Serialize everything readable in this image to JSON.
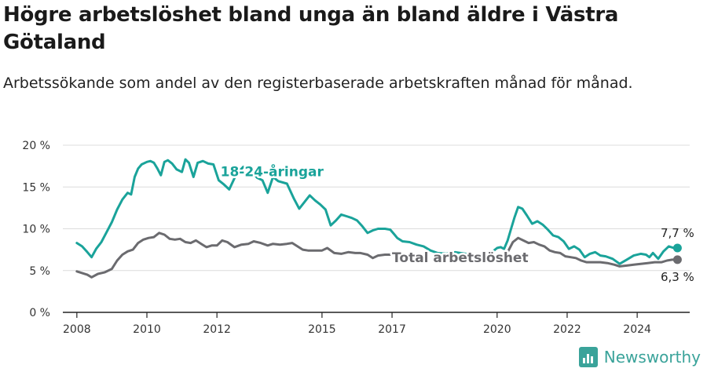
{
  "header": {
    "title": "Högre arbetslöshet bland unga än bland äldre i Västra Götaland",
    "subtitle": "Arbetssökande som andel av den registerbaserade arbetskraften månad för månad."
  },
  "brand": {
    "name": "Newsworthy",
    "logo_icon": "bar-chart-logo-icon"
  },
  "colors": {
    "youth": "#1aa39a",
    "total": "#6b6b6f",
    "grid": "#dcdcdc",
    "axis": "#222222"
  },
  "chart_data": {
    "type": "line",
    "x_unit": "year",
    "xlim": [
      2007.6,
      2025.5
    ],
    "ylim": [
      0,
      20
    ],
    "grid": "horizontal",
    "y_ticks": [
      {
        "value": 0,
        "label": "0 %"
      },
      {
        "value": 5,
        "label": "5 %"
      },
      {
        "value": 10,
        "label": "10 %"
      },
      {
        "value": 15,
        "label": "15 %"
      },
      {
        "value": 20,
        "label": "20 %"
      }
    ],
    "x_ticks": [
      {
        "value": 2008,
        "label": "2008"
      },
      {
        "value": 2010,
        "label": "2010"
      },
      {
        "value": 2012,
        "label": "2012"
      },
      {
        "value": 2015,
        "label": "2015"
      },
      {
        "value": 2017,
        "label": "2017"
      },
      {
        "value": 2020,
        "label": "2020"
      },
      {
        "value": 2022,
        "label": "2022"
      },
      {
        "value": 2024,
        "label": "2024"
      }
    ],
    "series": [
      {
        "name": "18-24-åringar",
        "color": "#1aa39a",
        "end_label": "7,7 %",
        "points": [
          [
            2008.0,
            8.3
          ],
          [
            2008.15,
            7.9
          ],
          [
            2008.3,
            7.2
          ],
          [
            2008.42,
            6.6
          ],
          [
            2008.55,
            7.6
          ],
          [
            2008.7,
            8.4
          ],
          [
            2008.85,
            9.6
          ],
          [
            2009.0,
            10.8
          ],
          [
            2009.15,
            12.3
          ],
          [
            2009.3,
            13.5
          ],
          [
            2009.45,
            14.3
          ],
          [
            2009.55,
            14.1
          ],
          [
            2009.65,
            16.2
          ],
          [
            2009.75,
            17.2
          ],
          [
            2009.85,
            17.7
          ],
          [
            2010.0,
            18.0
          ],
          [
            2010.1,
            18.1
          ],
          [
            2010.2,
            17.9
          ],
          [
            2010.3,
            17.2
          ],
          [
            2010.4,
            16.4
          ],
          [
            2010.5,
            18.0
          ],
          [
            2010.6,
            18.2
          ],
          [
            2010.72,
            17.8
          ],
          [
            2010.85,
            17.1
          ],
          [
            2011.0,
            16.8
          ],
          [
            2011.1,
            18.3
          ],
          [
            2011.2,
            17.9
          ],
          [
            2011.33,
            16.2
          ],
          [
            2011.45,
            17.9
          ],
          [
            2011.6,
            18.1
          ],
          [
            2011.75,
            17.8
          ],
          [
            2011.9,
            17.7
          ],
          [
            2012.05,
            15.8
          ],
          [
            2012.2,
            15.3
          ],
          [
            2012.35,
            14.7
          ],
          [
            2012.55,
            16.5
          ],
          [
            2012.75,
            17.4
          ],
          [
            2012.95,
            17.1
          ],
          [
            2013.15,
            16.1
          ],
          [
            2013.3,
            15.8
          ],
          [
            2013.45,
            14.3
          ],
          [
            2013.6,
            16.2
          ],
          [
            2013.75,
            15.7
          ],
          [
            2014.0,
            15.4
          ],
          [
            2014.2,
            13.6
          ],
          [
            2014.35,
            12.4
          ],
          [
            2014.5,
            13.2
          ],
          [
            2014.65,
            14.0
          ],
          [
            2014.8,
            13.4
          ],
          [
            2014.95,
            12.9
          ],
          [
            2015.1,
            12.3
          ],
          [
            2015.25,
            10.4
          ],
          [
            2015.4,
            11.0
          ],
          [
            2015.55,
            11.7
          ],
          [
            2015.7,
            11.5
          ],
          [
            2015.85,
            11.3
          ],
          [
            2016.0,
            11.0
          ],
          [
            2016.15,
            10.3
          ],
          [
            2016.3,
            9.5
          ],
          [
            2016.45,
            9.8
          ],
          [
            2016.6,
            10.0
          ],
          [
            2016.8,
            10.0
          ],
          [
            2016.95,
            9.9
          ],
          [
            2017.05,
            9.4
          ],
          [
            2017.15,
            8.9
          ],
          [
            2017.3,
            8.5
          ],
          [
            2017.5,
            8.4
          ],
          [
            2017.7,
            8.1
          ],
          [
            2017.9,
            7.9
          ],
          [
            2018.1,
            7.4
          ],
          [
            2018.3,
            7.1
          ],
          [
            2018.55,
            7.0
          ],
          [
            2018.8,
            7.2
          ],
          [
            2019.1,
            7.0
          ],
          [
            2019.4,
            6.8
          ],
          [
            2019.65,
            6.9
          ],
          [
            2019.85,
            7.2
          ],
          [
            2020.0,
            7.7
          ],
          [
            2020.1,
            7.8
          ],
          [
            2020.2,
            7.6
          ],
          [
            2020.3,
            8.6
          ],
          [
            2020.4,
            10.0
          ],
          [
            2020.5,
            11.4
          ],
          [
            2020.6,
            12.6
          ],
          [
            2020.72,
            12.4
          ],
          [
            2020.85,
            11.6
          ],
          [
            2021.0,
            10.6
          ],
          [
            2021.15,
            10.9
          ],
          [
            2021.3,
            10.5
          ],
          [
            2021.45,
            9.9
          ],
          [
            2021.6,
            9.2
          ],
          [
            2021.75,
            9.0
          ],
          [
            2021.9,
            8.5
          ],
          [
            2022.05,
            7.6
          ],
          [
            2022.2,
            7.9
          ],
          [
            2022.35,
            7.5
          ],
          [
            2022.5,
            6.6
          ],
          [
            2022.65,
            7.0
          ],
          [
            2022.8,
            7.2
          ],
          [
            2022.95,
            6.8
          ],
          [
            2023.1,
            6.7
          ],
          [
            2023.3,
            6.4
          ],
          [
            2023.5,
            5.8
          ],
          [
            2023.7,
            6.3
          ],
          [
            2023.9,
            6.8
          ],
          [
            2024.1,
            7.0
          ],
          [
            2024.25,
            6.9
          ],
          [
            2024.35,
            6.6
          ],
          [
            2024.45,
            7.1
          ],
          [
            2024.6,
            6.4
          ],
          [
            2024.75,
            7.3
          ],
          [
            2024.9,
            7.9
          ],
          [
            2025.05,
            7.7
          ],
          [
            2025.15,
            7.7
          ]
        ]
      },
      {
        "name": "Total arbetslöshet",
        "color": "#6b6b6f",
        "end_label": "6,3 %",
        "points": [
          [
            2008.0,
            4.9
          ],
          [
            2008.15,
            4.7
          ],
          [
            2008.3,
            4.5
          ],
          [
            2008.42,
            4.2
          ],
          [
            2008.6,
            4.6
          ],
          [
            2008.8,
            4.8
          ],
          [
            2009.0,
            5.2
          ],
          [
            2009.15,
            6.2
          ],
          [
            2009.3,
            6.9
          ],
          [
            2009.45,
            7.3
          ],
          [
            2009.6,
            7.5
          ],
          [
            2009.75,
            8.3
          ],
          [
            2009.9,
            8.7
          ],
          [
            2010.05,
            8.9
          ],
          [
            2010.2,
            9.0
          ],
          [
            2010.35,
            9.5
          ],
          [
            2010.5,
            9.3
          ],
          [
            2010.65,
            8.8
          ],
          [
            2010.8,
            8.7
          ],
          [
            2010.95,
            8.8
          ],
          [
            2011.1,
            8.4
          ],
          [
            2011.25,
            8.3
          ],
          [
            2011.4,
            8.6
          ],
          [
            2011.55,
            8.2
          ],
          [
            2011.7,
            7.8
          ],
          [
            2011.85,
            8.0
          ],
          [
            2012.0,
            8.0
          ],
          [
            2012.15,
            8.6
          ],
          [
            2012.3,
            8.4
          ],
          [
            2012.5,
            7.8
          ],
          [
            2012.7,
            8.1
          ],
          [
            2012.9,
            8.2
          ],
          [
            2013.05,
            8.5
          ],
          [
            2013.25,
            8.3
          ],
          [
            2013.45,
            8.0
          ],
          [
            2013.6,
            8.2
          ],
          [
            2013.8,
            8.1
          ],
          [
            2014.0,
            8.2
          ],
          [
            2014.15,
            8.3
          ],
          [
            2014.3,
            7.9
          ],
          [
            2014.45,
            7.5
          ],
          [
            2014.6,
            7.4
          ],
          [
            2014.8,
            7.4
          ],
          [
            2015.0,
            7.4
          ],
          [
            2015.15,
            7.7
          ],
          [
            2015.35,
            7.1
          ],
          [
            2015.55,
            7.0
          ],
          [
            2015.75,
            7.2
          ],
          [
            2015.95,
            7.1
          ],
          [
            2016.1,
            7.1
          ],
          [
            2016.3,
            6.9
          ],
          [
            2016.45,
            6.5
          ],
          [
            2016.6,
            6.8
          ],
          [
            2016.8,
            6.9
          ],
          [
            2017.0,
            6.9
          ]
        ]
      },
      {
        "name": "Total arbetslöshet",
        "color": "#6b6b6f",
        "end_label": "",
        "points": [
          [
            2020.3,
            7.2
          ],
          [
            2020.45,
            8.4
          ],
          [
            2020.6,
            8.9
          ],
          [
            2020.75,
            8.6
          ],
          [
            2020.9,
            8.3
          ],
          [
            2021.05,
            8.4
          ],
          [
            2021.2,
            8.1
          ],
          [
            2021.35,
            7.9
          ],
          [
            2021.5,
            7.4
          ],
          [
            2021.65,
            7.2
          ],
          [
            2021.8,
            7.1
          ],
          [
            2021.95,
            6.7
          ],
          [
            2022.1,
            6.6
          ],
          [
            2022.25,
            6.5
          ],
          [
            2022.4,
            6.2
          ],
          [
            2022.55,
            6.0
          ],
          [
            2022.75,
            6.0
          ],
          [
            2022.95,
            6.0
          ],
          [
            2023.15,
            5.9
          ],
          [
            2023.35,
            5.7
          ],
          [
            2023.5,
            5.5
          ],
          [
            2023.7,
            5.6
          ],
          [
            2023.9,
            5.7
          ],
          [
            2024.1,
            5.8
          ],
          [
            2024.3,
            5.9
          ],
          [
            2024.5,
            6.0
          ],
          [
            2024.7,
            6.0
          ],
          [
            2024.85,
            6.2
          ],
          [
            2025.0,
            6.3
          ],
          [
            2025.15,
            6.3
          ]
        ]
      }
    ],
    "annotations": [
      {
        "text": "18-24-åringar",
        "x": 2012.1,
        "y": 16.3,
        "color": "#1aa39a"
      },
      {
        "text": "Total arbetslöshet",
        "x": 2017.0,
        "y": 6.0,
        "color": "#6b6b6f"
      }
    ]
  }
}
